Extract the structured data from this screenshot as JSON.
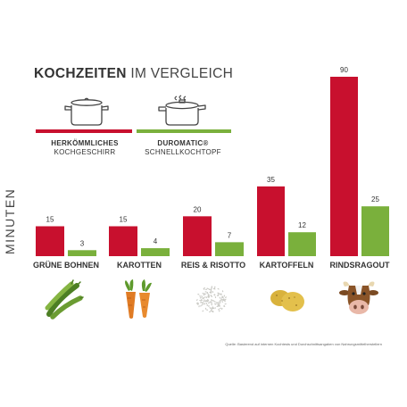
{
  "title": {
    "bold": "KOCHZEITEN",
    "rest": "IM VERGLEICH"
  },
  "legend": [
    {
      "line1": "HERKÖMMLICHES",
      "line2": "KOCHGESCHIRR",
      "color": "#c8102e",
      "icon": "cooking-pot-icon"
    },
    {
      "line1": "DUROMATIC®",
      "line2": "SCHNELLKOCHTOPF",
      "color": "#7ab03c",
      "icon": "pressure-cooker-icon"
    }
  ],
  "chart_data": {
    "type": "bar",
    "ylabel": "MINUTEN",
    "categories": [
      "GRÜNE BOHNEN",
      "KAROTTEN",
      "REIS & RISOTTO",
      "KARTOFFELN",
      "RINDSRAGOUT"
    ],
    "series": [
      {
        "name": "HERKÖMMLICHES KOCHGESCHIRR",
        "color": "#c8102e",
        "values": [
          15,
          15,
          20,
          35,
          90
        ]
      },
      {
        "name": "DUROMATIC® SCHNELLKOCHTOPF",
        "color": "#7ab03c",
        "values": [
          3,
          4,
          7,
          12,
          25
        ]
      }
    ],
    "ylim": [
      0,
      90
    ],
    "grid": false,
    "data_labels": true
  },
  "food_icons": [
    "green-beans-icon",
    "carrots-icon",
    "rice-icon",
    "potatoes-icon",
    "cow-head-icon"
  ],
  "source": "Quelle: Basierend auf internen Kochtests und Durchschnittsangaben von Nahrungsmittelherstellern"
}
